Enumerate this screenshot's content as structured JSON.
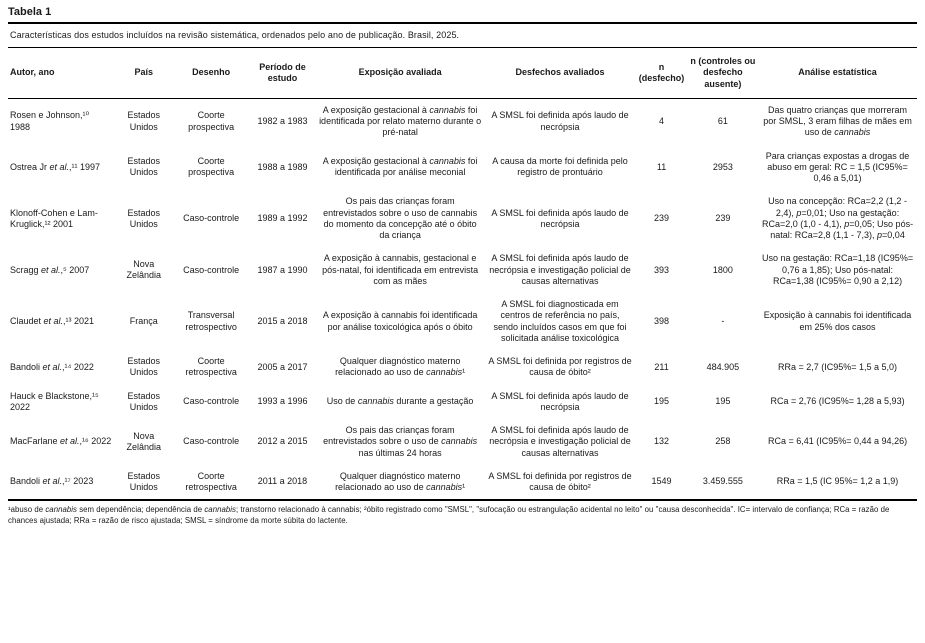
{
  "colors": {
    "text": "#1a1a1a",
    "rule": "#000000",
    "background": "#ffffff"
  },
  "table": {
    "label": "Tabela 1",
    "caption": "Características dos estudos incluídos na revisão sistemática, ordenados pelo ano de publicação. Brasil, 2025.",
    "columns": [
      "Autor, ano",
      "País",
      "Desenho",
      "Período de estudo",
      "Exposição avaliada",
      "Desfechos avaliados",
      "n (desfecho)",
      "n (controles ou desfecho ausente)",
      "Análise estatística"
    ],
    "column_keys": [
      "autor-ano",
      "pais",
      "desenho",
      "periodo-de-estudo",
      "exposicao-avaliada",
      "desfechos-avaliados",
      "n-desfecho",
      "n-controles",
      "analise-estatistica"
    ],
    "rows": [
      [
        "Rosen e Johnson,¹⁰ 1988",
        "Estados Unidos",
        "Coorte prospectiva",
        "1982 a 1983",
        "A exposição gestacional à *cannabis* foi identificada por relato materno durante o pré-natal",
        "A SMSL foi definida após laudo de necrópsia",
        "4",
        "61",
        "Das quatro crianças que morreram por SMSL, 3 eram filhas de mães em uso de *cannabis*"
      ],
      [
        "Ostrea Jr *et al.*,¹¹ 1997",
        "Estados Unidos",
        "Coorte prospectiva",
        "1988 a 1989",
        "A exposição gestacional à *cannabis* foi identificada por análise meconial",
        "A causa da morte foi definida pelo registro de prontuário",
        "11",
        "2953",
        "Para crianças expostas a drogas de abuso em geral: RC = 1,5 (IC95%= 0,46 a 5,01)"
      ],
      [
        "Klonoff-Cohen e Lam-Kruglick,¹² 2001",
        "Estados Unidos",
        "Caso-controle",
        "1989 a 1992",
        "Os pais das crianças foram entrevistados sobre o uso de cannabis do momento da concepção até o óbito da criança",
        "A SMSL foi definida após laudo de necrópsia",
        "239",
        "239",
        "Uso na concepção: RCa=2,2 (1,2 - 2,4), *p*=0,01; Uso na gestação: RCa=2,0 (1,0 - 4,1), *p*=0,05; Uso pós-natal: RCa=2,8 (1,1 - 7,3), *p*=0,04"
      ],
      [
        "Scragg *et al.*,⁵ 2007",
        "Nova Zelândia",
        "Caso-controle",
        "1987 a 1990",
        "A exposição à cannabis, gestacional e pós-natal, foi identificada em entrevista com as mães",
        "A SMSL foi definida após laudo de necrópsia e investigação policial de causas alternativas",
        "393",
        "1800",
        "Uso na gestação: RCa=1,18 (IC95%= 0,76 a 1,85); Uso pós-natal: RCa=1,38 (IC95%= 0,90 a 2,12)"
      ],
      [
        "Claudet *et al.*,¹³ 2021",
        "França",
        "Transversal retrospectivo",
        "2015 a 2018",
        "A exposição à cannabis foi identificada por análise toxicológica após o óbito",
        "A SMSL foi diagnosticada em centros de referência no país, sendo incluídos casos em que foi solicitada análise toxicológica",
        "398",
        "-",
        "Exposição à cannabis foi identificada em 25% dos casos"
      ],
      [
        "Bandoli *et al.*,¹⁴ 2022",
        "Estados Unidos",
        "Coorte retrospectiva",
        "2005 a 2017",
        "Qualquer diagnóstico materno relacionado ao uso de *cannabis*¹",
        "A SMSL foi definida por registros de causa de óbito²",
        "211",
        "484.905",
        "RRa = 2,7 (IC95%= 1,5 a 5,0)"
      ],
      [
        "Hauck e Blackstone,¹⁵ 2022",
        "Estados Unidos",
        "Caso-controle",
        "1993 a 1996",
        "Uso de *cannabis* durante a gestação",
        "A SMSL foi definida após laudo de necrópsia",
        "195",
        "195",
        "RCa = 2,76 (IC95%= 1,28 a 5,93)"
      ],
      [
        "MacFarlane *et al.*,¹⁶ 2022",
        "Nova Zelândia",
        "Caso-controle",
        "2012 a 2015",
        "Os pais das crianças foram entrevistados sobre o uso de *cannabis* nas últimas 24 horas",
        "A SMSL foi definida após laudo de necrópsia e investigação policial de causas alternativas",
        "132",
        "258",
        "RCa = 6,41 (IC95%= 0,44 a 94,26)"
      ],
      [
        "Bandoli *et al.*,¹⁷ 2023",
        "Estados Unidos",
        "Coorte retrospectiva",
        "2011 a 2018",
        "Qualquer diagnóstico materno relacionado ao uso de *cannabis*¹",
        "A SMSL foi definida por registros de causa de óbito²",
        "1549",
        "3.459.555",
        "RRa = 1,5 (IC 95%= 1,2 a 1,9)"
      ]
    ],
    "footnote": "¹abuso de *cannabis* sem dependência; dependência de *cannabis*; transtorno relacionado à cannabis; ²óbito registrado como \"SMSL\", \"sufocação ou estrangulação acidental no leito\" ou \"causa desconhecida\". IC= intervalo de confiança; RCa = razão de chances ajustada; RRa = razão de risco ajustada; SMSL = síndrome da morte súbita do lactente."
  }
}
